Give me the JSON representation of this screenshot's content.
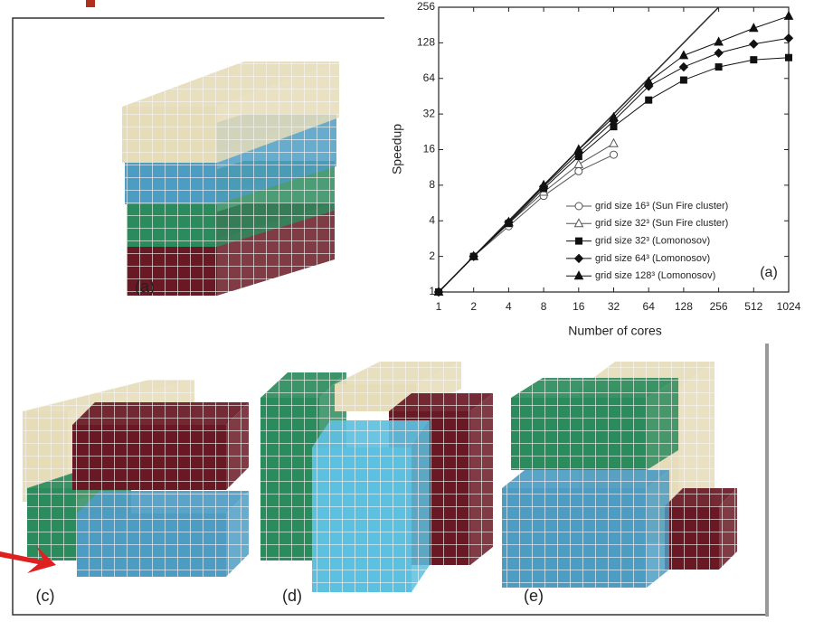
{
  "chart_data": {
    "type": "line",
    "xlabel": "Number of cores",
    "ylabel": "Speedup",
    "panel_label": "(a)",
    "xscale": "log2",
    "yscale": "log2",
    "x": [
      1,
      2,
      4,
      8,
      16,
      32,
      64,
      128,
      256,
      512,
      1024
    ],
    "xlim": [
      1,
      1024
    ],
    "xticks": [
      1,
      2,
      4,
      8,
      16,
      32,
      64,
      128,
      256,
      512,
      1024
    ],
    "ylim": [
      1,
      256
    ],
    "yticks": [
      1,
      2,
      4,
      8,
      16,
      32,
      64,
      128,
      256
    ],
    "reference": {
      "x": [
        1,
        256
      ],
      "values": [
        1,
        256
      ],
      "color": "#333333"
    },
    "series": [
      {
        "name": "grid size 16³ (Sun Fire cluster)",
        "marker": "open-circle",
        "color": "#555555",
        "values": [
          1,
          2,
          3.6,
          6.5,
          10.5,
          14.5,
          null,
          null,
          null,
          null,
          null
        ]
      },
      {
        "name": "grid size 32³ (Sun Fire cluster)",
        "marker": "open-triangle",
        "color": "#555555",
        "values": [
          1,
          2,
          3.8,
          7,
          12,
          18,
          null,
          null,
          null,
          null,
          null
        ]
      },
      {
        "name": "grid size 32³ (Lomonosov)",
        "marker": "square",
        "color": "#111111",
        "values": [
          1,
          2,
          3.8,
          7.5,
          14,
          25,
          42,
          62,
          80,
          92,
          96
        ]
      },
      {
        "name": "grid size 64³ (Lomonosov)",
        "marker": "diamond",
        "color": "#111111",
        "values": [
          1,
          2,
          3.9,
          7.8,
          15,
          28,
          55,
          80,
          105,
          125,
          140
        ]
      },
      {
        "name": "grid size 128³ (Lomonosov)",
        "marker": "triangle",
        "color": "#111111",
        "values": [
          1,
          2,
          3.9,
          8,
          16,
          30,
          60,
          100,
          130,
          170,
          215
        ]
      }
    ]
  },
  "figure_labels": [
    "(a)",
    "(c)",
    "(d)",
    "(e)"
  ]
}
